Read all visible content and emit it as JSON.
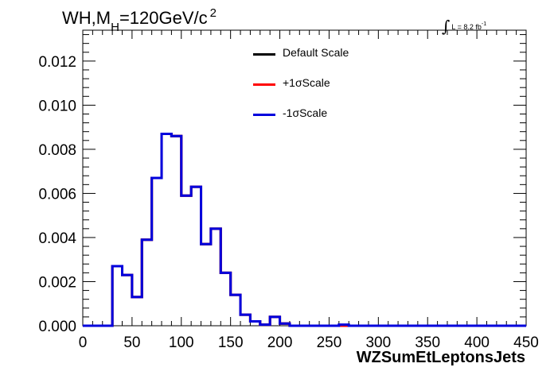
{
  "header": {
    "title_prefix": "WH,M",
    "title_sub": "H",
    "title_mid": "=120GeV/c",
    "title_sup": "2",
    "lumi_integral": "∫",
    "lumi_text": "L = 8.2 fb",
    "lumi_exp": "-1"
  },
  "chart_data": {
    "type": "line",
    "step": true,
    "title": "WH,MH=120GeV/c 2",
    "xlabel": "WZSumEtLeptonsJets",
    "ylabel": "",
    "xlim": [
      0,
      450
    ],
    "ylim": [
      0,
      0.0134
    ],
    "grid": false,
    "legend_placement": "top-center",
    "x_ticks": [
      0,
      50,
      100,
      150,
      200,
      250,
      300,
      350,
      400,
      450
    ],
    "x_tick_labels": [
      "0",
      "50",
      "100",
      "150",
      "200",
      "250",
      "300",
      "350",
      "400",
      "450"
    ],
    "y_ticks": [
      0,
      0.002,
      0.004,
      0.006,
      0.008,
      0.01,
      0.012
    ],
    "y_tick_labels": [
      "0.000",
      "0.002",
      "0.004",
      "0.006",
      "0.008",
      "0.010",
      "0.012"
    ],
    "bin_width": 10,
    "bin_edges_start": 0,
    "series": [
      {
        "name": "Default Scale",
        "color": "#000000",
        "values": [
          0,
          0,
          0,
          0.0027,
          0.0023,
          0.0013,
          0.0039,
          0.0067,
          0.0087,
          0.0086,
          0.0059,
          0.0063,
          0.0037,
          0.0044,
          0.0024,
          0.0014,
          0.0005,
          0.0002,
          5e-05,
          0.0004,
          0.0001,
          0,
          0,
          0,
          0,
          0,
          0,
          0,
          0,
          0,
          0,
          0,
          0,
          0,
          0,
          0,
          0,
          0,
          0,
          0,
          0,
          0,
          0,
          0,
          0
        ]
      },
      {
        "name": "+1σScale",
        "color": "#ff0000",
        "values": [
          0,
          0,
          0,
          0.0027,
          0.0023,
          0.0013,
          0.0039,
          0.0067,
          0.0087,
          0.0086,
          0.0059,
          0.0063,
          0.0037,
          0.0044,
          0.0024,
          0.0014,
          0.0005,
          0.0002,
          5e-05,
          0.0004,
          0.0001,
          0,
          0,
          0,
          0,
          0,
          0,
          0,
          0,
          0,
          0,
          0,
          0,
          0,
          0,
          0,
          0,
          0,
          0,
          0,
          0,
          0,
          0,
          0,
          0
        ]
      },
      {
        "name": "-1σScale",
        "color": "#0000dd",
        "values": [
          0,
          0,
          0,
          0.0027,
          0.0023,
          0.0013,
          0.0039,
          0.0067,
          0.0087,
          0.0086,
          0.0059,
          0.0063,
          0.0037,
          0.0044,
          0.0024,
          0.0014,
          0.0005,
          0.0002,
          5e-05,
          0.0004,
          0.0001,
          0,
          0,
          0,
          0,
          0,
          5e-05,
          0,
          0,
          0,
          0,
          0,
          0,
          0,
          0,
          0,
          0,
          0,
          0,
          0,
          0,
          0,
          0,
          0,
          0
        ]
      }
    ]
  }
}
